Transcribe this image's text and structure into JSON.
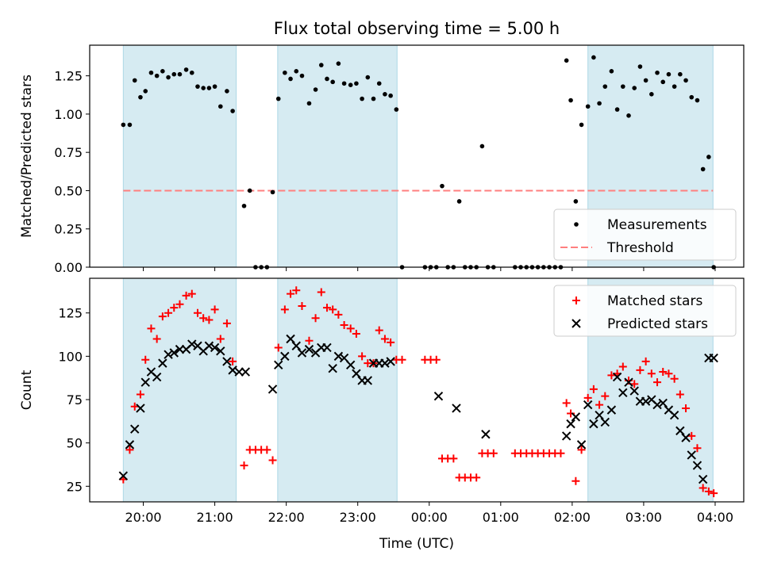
{
  "chart_data": {
    "title": "Flux total observing time = 5.00 h",
    "xlabel": "Time (UTC)",
    "x_ticks": [
      "20:00",
      "21:00",
      "22:00",
      "23:00",
      "00:00",
      "01:00",
      "02:00",
      "03:00",
      "04:00"
    ],
    "x_range_hours": [
      19.25,
      28.4
    ],
    "shaded_intervals_hours": [
      [
        19.72,
        21.3
      ],
      [
        21.88,
        23.55
      ],
      [
        26.22,
        27.97
      ]
    ],
    "colors": {
      "shade": "#add8e6",
      "measurement": "#000000",
      "threshold": "#ff7f7f",
      "matched": "#ff0000",
      "predicted": "#000000"
    },
    "panels": [
      {
        "type": "scatter",
        "ylabel": "Matched/Predicted stars",
        "ylim": [
          0,
          1.45
        ],
        "y_ticks": [
          "0.00",
          "0.25",
          "0.50",
          "0.75",
          "1.00",
          "1.25"
        ],
        "y_tick_values": [
          0,
          0.25,
          0.5,
          0.75,
          1.0,
          1.25
        ],
        "threshold": 0.5,
        "legend": [
          "Measurements",
          "Threshold"
        ],
        "legend_position": "lower-right",
        "series": [
          {
            "name": "Measurements",
            "x": [
              19.72,
              19.81,
              19.88,
              19.96,
              20.03,
              20.11,
              20.19,
              20.27,
              20.35,
              20.43,
              20.51,
              20.6,
              20.68,
              20.76,
              20.84,
              20.92,
              21.0,
              21.08,
              21.17,
              21.25,
              21.41,
              21.49,
              21.57,
              21.65,
              21.73,
              21.81,
              21.89,
              21.98,
              22.06,
              22.14,
              22.22,
              22.32,
              22.41,
              22.49,
              22.57,
              22.65,
              22.73,
              22.81,
              22.9,
              22.98,
              23.06,
              23.14,
              23.22,
              23.3,
              23.38,
              23.46,
              23.54,
              23.62,
              23.94,
              24.02,
              24.1,
              24.18,
              24.26,
              24.34,
              24.42,
              24.5,
              24.58,
              24.66,
              24.74,
              24.82,
              24.9,
              25.2,
              25.28,
              25.36,
              25.44,
              25.52,
              25.6,
              25.68,
              25.76,
              25.84,
              25.92,
              25.98,
              26.05,
              26.13,
              26.22,
              26.3,
              26.38,
              26.46,
              26.55,
              26.63,
              26.71,
              26.79,
              26.87,
              26.95,
              27.03,
              27.11,
              27.19,
              27.27,
              27.35,
              27.43,
              27.51,
              27.59,
              27.67,
              27.75,
              27.83,
              27.91,
              27.98
            ],
            "y": [
              0.93,
              0.93,
              1.22,
              1.11,
              1.15,
              1.27,
              1.25,
              1.28,
              1.24,
              1.26,
              1.26,
              1.29,
              1.27,
              1.18,
              1.17,
              1.17,
              1.18,
              1.05,
              1.15,
              1.02,
              0.4,
              0.5,
              0.0,
              0.0,
              0.0,
              0.49,
              1.1,
              1.27,
              1.23,
              1.28,
              1.25,
              1.07,
              1.16,
              1.32,
              1.23,
              1.21,
              1.33,
              1.2,
              1.19,
              1.2,
              1.1,
              1.24,
              1.1,
              1.2,
              1.13,
              1.12,
              1.03,
              0.0,
              0.0,
              0.0,
              0.0,
              0.53,
              0.0,
              0.0,
              0.43,
              0.0,
              0.0,
              0.0,
              0.79,
              0.0,
              0.0,
              0.0,
              0.0,
              0.0,
              0.0,
              0.0,
              0.0,
              0.0,
              0.0,
              0.0,
              1.35,
              1.09,
              0.43,
              0.93,
              1.05,
              1.37,
              1.07,
              1.18,
              1.28,
              1.03,
              1.18,
              0.99,
              1.17,
              1.31,
              1.22,
              1.13,
              1.27,
              1.21,
              1.26,
              1.18,
              1.26,
              1.22,
              1.11,
              1.09,
              0.64,
              0.72,
              0.0
            ]
          }
        ]
      },
      {
        "type": "scatter",
        "ylabel": "Count",
        "ylim": [
          16,
          145
        ],
        "y_ticks": [
          "25",
          "50",
          "75",
          "100",
          "125"
        ],
        "y_tick_values": [
          25,
          50,
          75,
          100,
          125
        ],
        "legend": [
          "Matched stars",
          "Predicted stars"
        ],
        "legend_position": "top-right",
        "series": [
          {
            "name": "Matched stars",
            "x": [
              19.72,
              19.81,
              19.88,
              19.96,
              20.03,
              20.11,
              20.19,
              20.27,
              20.35,
              20.43,
              20.51,
              20.6,
              20.68,
              20.76,
              20.84,
              20.92,
              21.0,
              21.08,
              21.17,
              21.25,
              21.41,
              21.49,
              21.57,
              21.65,
              21.73,
              21.81,
              21.89,
              21.98,
              22.06,
              22.14,
              22.22,
              22.32,
              22.41,
              22.49,
              22.57,
              22.65,
              22.73,
              22.81,
              22.9,
              22.98,
              23.06,
              23.14,
              23.22,
              23.3,
              23.38,
              23.46,
              23.54,
              23.62,
              23.94,
              24.02,
              24.1,
              24.18,
              24.26,
              24.34,
              24.42,
              24.5,
              24.58,
              24.66,
              24.74,
              24.82,
              24.9,
              25.2,
              25.28,
              25.36,
              25.44,
              25.52,
              25.6,
              25.68,
              25.76,
              25.84,
              25.92,
              25.98,
              26.05,
              26.13,
              26.22,
              26.3,
              26.38,
              26.46,
              26.55,
              26.63,
              26.71,
              26.79,
              26.87,
              26.95,
              27.03,
              27.11,
              27.19,
              27.27,
              27.35,
              27.43,
              27.51,
              27.59,
              27.67,
              27.75,
              27.83,
              27.91,
              27.98
            ],
            "y": [
              29,
              46,
              71,
              78,
              98,
              116,
              110,
              123,
              125,
              128,
              130,
              135,
              136,
              125,
              122,
              121,
              127,
              110,
              119,
              97,
              37,
              46,
              46,
              46,
              46,
              40,
              105,
              127,
              136,
              138,
              129,
              109,
              122,
              137,
              128,
              127,
              124,
              118,
              116,
              113,
              100,
              96,
              96,
              115,
              110,
              108,
              98,
              98,
              98,
              98,
              98,
              41,
              41,
              41,
              30,
              30,
              30,
              30,
              44,
              44,
              44,
              44,
              44,
              44,
              44,
              44,
              44,
              44,
              44,
              44,
              73,
              67,
              28,
              46,
              76,
              81,
              72,
              77,
              89,
              90,
              94,
              86,
              84,
              92,
              97,
              90,
              85,
              91,
              90,
              87,
              78,
              70,
              54,
              47,
              24,
              22,
              21
            ]
          },
          {
            "name": "Predicted stars",
            "x": [
              19.72,
              19.81,
              19.88,
              19.96,
              20.03,
              20.11,
              20.19,
              20.27,
              20.35,
              20.43,
              20.51,
              20.6,
              20.68,
              20.76,
              20.84,
              20.92,
              21.0,
              21.08,
              21.17,
              21.25,
              21.34,
              21.43,
              21.81,
              21.89,
              21.98,
              22.06,
              22.14,
              22.22,
              22.32,
              22.41,
              22.49,
              22.57,
              22.65,
              22.73,
              22.81,
              22.9,
              22.98,
              23.06,
              23.14,
              23.22,
              23.3,
              23.38,
              23.46,
              24.13,
              24.38,
              24.79,
              25.92,
              25.98,
              26.05,
              26.13,
              26.22,
              26.3,
              26.38,
              26.46,
              26.55,
              26.63,
              26.71,
              26.79,
              26.87,
              26.95,
              27.03,
              27.11,
              27.19,
              27.27,
              27.35,
              27.43,
              27.51,
              27.59,
              27.67,
              27.75,
              27.83,
              27.91,
              27.98
            ],
            "y": [
              31,
              49,
              58,
              70,
              85,
              91,
              88,
              96,
              101,
              102,
              104,
              104,
              107,
              106,
              103,
              106,
              105,
              103,
              97,
              92,
              91,
              91,
              81,
              95,
              100,
              110,
              106,
              102,
              104,
              102,
              105,
              105,
              93,
              100,
              99,
              95,
              90,
              86,
              86,
              96,
              96,
              96,
              97,
              77,
              70,
              55,
              54,
              61,
              65,
              49,
              72,
              61,
              66,
              62,
              69,
              88,
              79,
              85,
              80,
              74,
              74,
              75,
              72,
              73,
              69,
              66,
              57,
              53,
              43,
              37,
              29,
              99,
              99
            ]
          }
        ]
      }
    ]
  }
}
